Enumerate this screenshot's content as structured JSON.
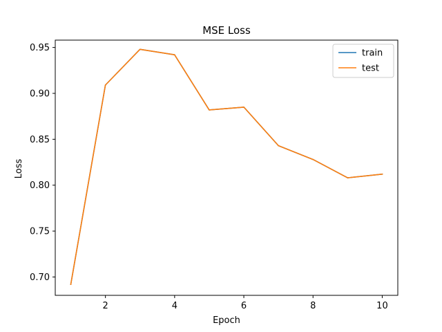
{
  "chart_data": {
    "type": "line",
    "title": "MSE Loss",
    "xlabel": "Epoch",
    "ylabel": "Loss",
    "x": [
      1,
      2,
      3,
      4,
      5,
      6,
      7,
      8,
      9,
      10
    ],
    "series": [
      {
        "name": "train",
        "color": "#1f77b4",
        "values": [
          0.692,
          0.909,
          0.948,
          0.942,
          0.882,
          0.885,
          0.843,
          0.828,
          0.808,
          0.812
        ]
      },
      {
        "name": "test",
        "color": "#ff7f0e",
        "values": [
          0.692,
          0.909,
          0.948,
          0.942,
          0.882,
          0.885,
          0.843,
          0.828,
          0.808,
          0.812
        ]
      }
    ],
    "xlim": [
      0.55,
      10.45
    ],
    "ylim": [
      0.68,
      0.958
    ],
    "xticks": [
      2,
      4,
      6,
      8,
      10
    ],
    "xtick_labels": [
      "2",
      "4",
      "6",
      "8",
      "10"
    ],
    "yticks": [
      0.7,
      0.75,
      0.8,
      0.85,
      0.9,
      0.95
    ],
    "ytick_labels": [
      "0.70",
      "0.75",
      "0.80",
      "0.85",
      "0.90",
      "0.95"
    ],
    "grid": false,
    "legend_position": "top-right"
  }
}
